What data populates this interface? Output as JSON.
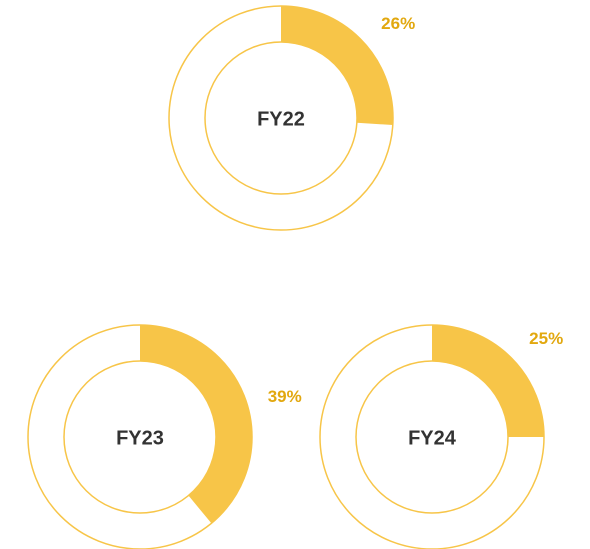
{
  "chart_data": [
    {
      "type": "pie",
      "title": "FY22",
      "values": [
        26
      ],
      "value_labels": [
        "26%"
      ],
      "color": "#f7c548"
    },
    {
      "type": "pie",
      "title": "FY23",
      "values": [
        39
      ],
      "value_labels": [
        "39%"
      ],
      "color": "#f7c548"
    },
    {
      "type": "pie",
      "title": "FY24",
      "values": [
        25
      ],
      "value_labels": [
        "25%"
      ],
      "color": "#f7c548"
    }
  ]
}
